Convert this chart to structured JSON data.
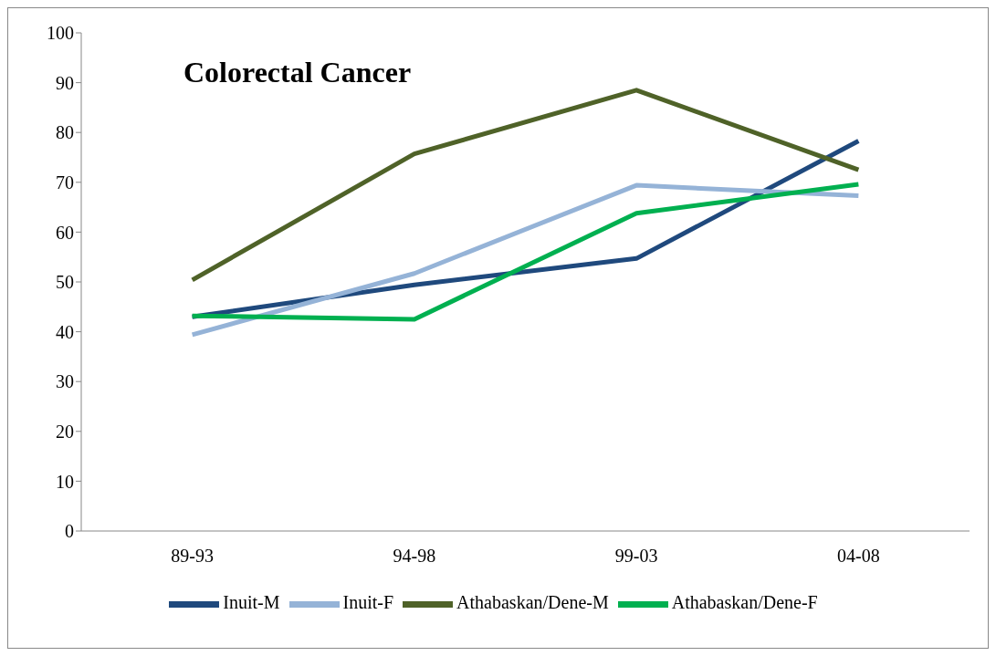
{
  "chart_data": {
    "type": "line",
    "title": "Colorectal Cancer",
    "categories": [
      "89-93",
      "94-98",
      "99-03",
      "04-08"
    ],
    "series": [
      {
        "name": "Inuit-M",
        "color": "#1f497d",
        "values": [
          43.0,
          49.4,
          54.7,
          78.3
        ]
      },
      {
        "name": "Inuit-F",
        "color": "#95b3d7",
        "values": [
          39.4,
          51.7,
          69.4,
          67.3
        ]
      },
      {
        "name": "Athabaskan/Dene-M",
        "color": "#4f6228",
        "values": [
          50.4,
          75.7,
          88.5,
          72.5
        ]
      },
      {
        "name": "Athabaskan/Dene-F",
        "color": "#00b050",
        "values": [
          43.2,
          42.5,
          63.8,
          69.6
        ]
      }
    ],
    "ylim": [
      0,
      100
    ],
    "yticks": [
      0,
      10,
      20,
      30,
      40,
      50,
      60,
      70,
      80,
      90,
      100
    ],
    "grid": false,
    "legend": "bottom",
    "marker": "none",
    "line_style": "solid"
  }
}
